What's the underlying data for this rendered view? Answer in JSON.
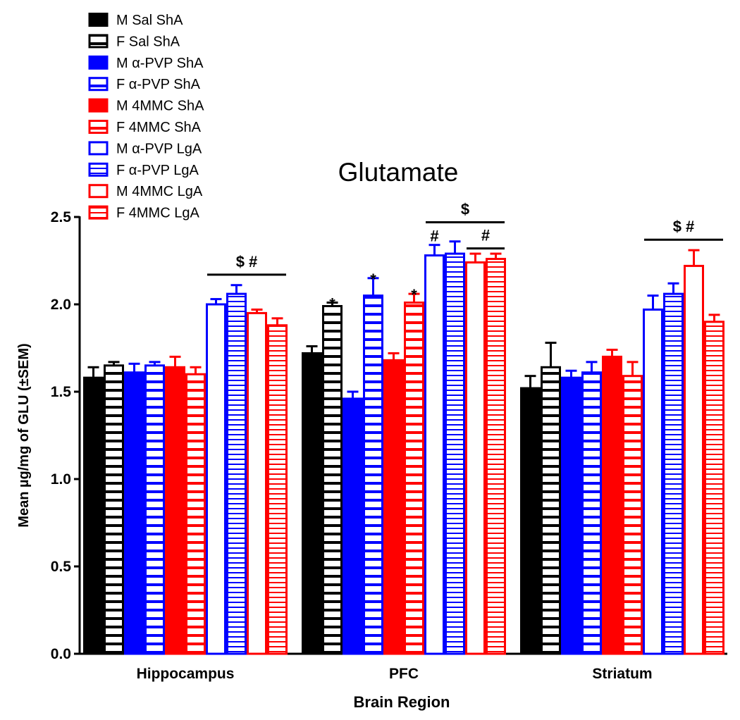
{
  "chart_data": {
    "type": "bar",
    "title": "Glutamate",
    "xlabel": "Brain Region",
    "ylabel": "Mean µg/mg of GLU (±SEM)",
    "ylim": [
      0,
      2.5
    ],
    "yticks": [
      "0.0",
      "0.5",
      "1.0",
      "1.5",
      "2.0",
      "2.5"
    ],
    "grid": false,
    "legend_position": "top-left",
    "categories": [
      "Hippocampus",
      "PFC",
      "Striatum"
    ],
    "series": [
      {
        "name": "M Sal ShA",
        "color": "#000000",
        "style": "solid",
        "values": [
          1.58,
          1.72,
          1.52
        ],
        "sem": [
          0.06,
          0.04,
          0.07
        ]
      },
      {
        "name": "F Sal ShA",
        "color": "#000000",
        "style": "hatch",
        "values": [
          1.65,
          1.99,
          1.64
        ],
        "sem": [
          0.02,
          0.02,
          0.14
        ]
      },
      {
        "name": "M α-PVP ShA",
        "color": "#0000ff",
        "style": "solid",
        "values": [
          1.61,
          1.46,
          1.58
        ],
        "sem": [
          0.05,
          0.04,
          0.04
        ]
      },
      {
        "name": "F α-PVP ShA",
        "color": "#0000ff",
        "style": "hatch",
        "values": [
          1.65,
          2.05,
          1.61
        ],
        "sem": [
          0.02,
          0.1,
          0.06
        ]
      },
      {
        "name": "M 4MMC ShA",
        "color": "#ff0000",
        "style": "solid",
        "values": [
          1.64,
          1.68,
          1.7
        ],
        "sem": [
          0.06,
          0.04,
          0.04
        ]
      },
      {
        "name": "F 4MMC ShA",
        "color": "#ff0000",
        "style": "hatch",
        "values": [
          1.6,
          2.01,
          1.59
        ],
        "sem": [
          0.04,
          0.05,
          0.08
        ]
      },
      {
        "name": "M α-PVP LgA",
        "color": "#0000ff",
        "style": "open",
        "values": [
          2.0,
          2.28,
          1.97
        ],
        "sem": [
          0.03,
          0.06,
          0.08
        ]
      },
      {
        "name": "F α-PVP LgA",
        "color": "#0000ff",
        "style": "densehatch",
        "values": [
          2.06,
          2.29,
          2.06
        ],
        "sem": [
          0.05,
          0.07,
          0.06
        ]
      },
      {
        "name": "M 4MMC LgA",
        "color": "#ff0000",
        "style": "open",
        "values": [
          1.95,
          2.24,
          2.22
        ],
        "sem": [
          0.02,
          0.05,
          0.09
        ]
      },
      {
        "name": "F 4MMC LgA",
        "color": "#ff0000",
        "style": "densehatch",
        "values": [
          1.88,
          2.26,
          1.9
        ],
        "sem": [
          0.04,
          0.03,
          0.04
        ]
      }
    ],
    "annotations": [
      {
        "category": 0,
        "text": "$  #",
        "bar_from": 6,
        "bar_to": 9,
        "y": 2.17,
        "line": true
      },
      {
        "category": 1,
        "text": "*",
        "bar_from": 1,
        "bar_to": 1,
        "y": 2.03,
        "line": false
      },
      {
        "category": 1,
        "text": "*",
        "bar_from": 3,
        "bar_to": 3,
        "y": 2.17,
        "line": false
      },
      {
        "category": 1,
        "text": "*",
        "bar_from": 5,
        "bar_to": 5,
        "y": 2.08,
        "line": false
      },
      {
        "category": 1,
        "text": "#",
        "bar_from": 6,
        "bar_to": 6,
        "y": 2.36,
        "line": false
      },
      {
        "category": 1,
        "text": "#",
        "bar_from": 8,
        "bar_to": 9,
        "y": 2.32,
        "line": true
      },
      {
        "category": 1,
        "text": "$",
        "bar_from": 6,
        "bar_to": 9,
        "y": 2.47,
        "line": true
      },
      {
        "category": 2,
        "text": "$  #",
        "bar_from": 6,
        "bar_to": 9,
        "y": 2.37,
        "line": true
      }
    ]
  }
}
